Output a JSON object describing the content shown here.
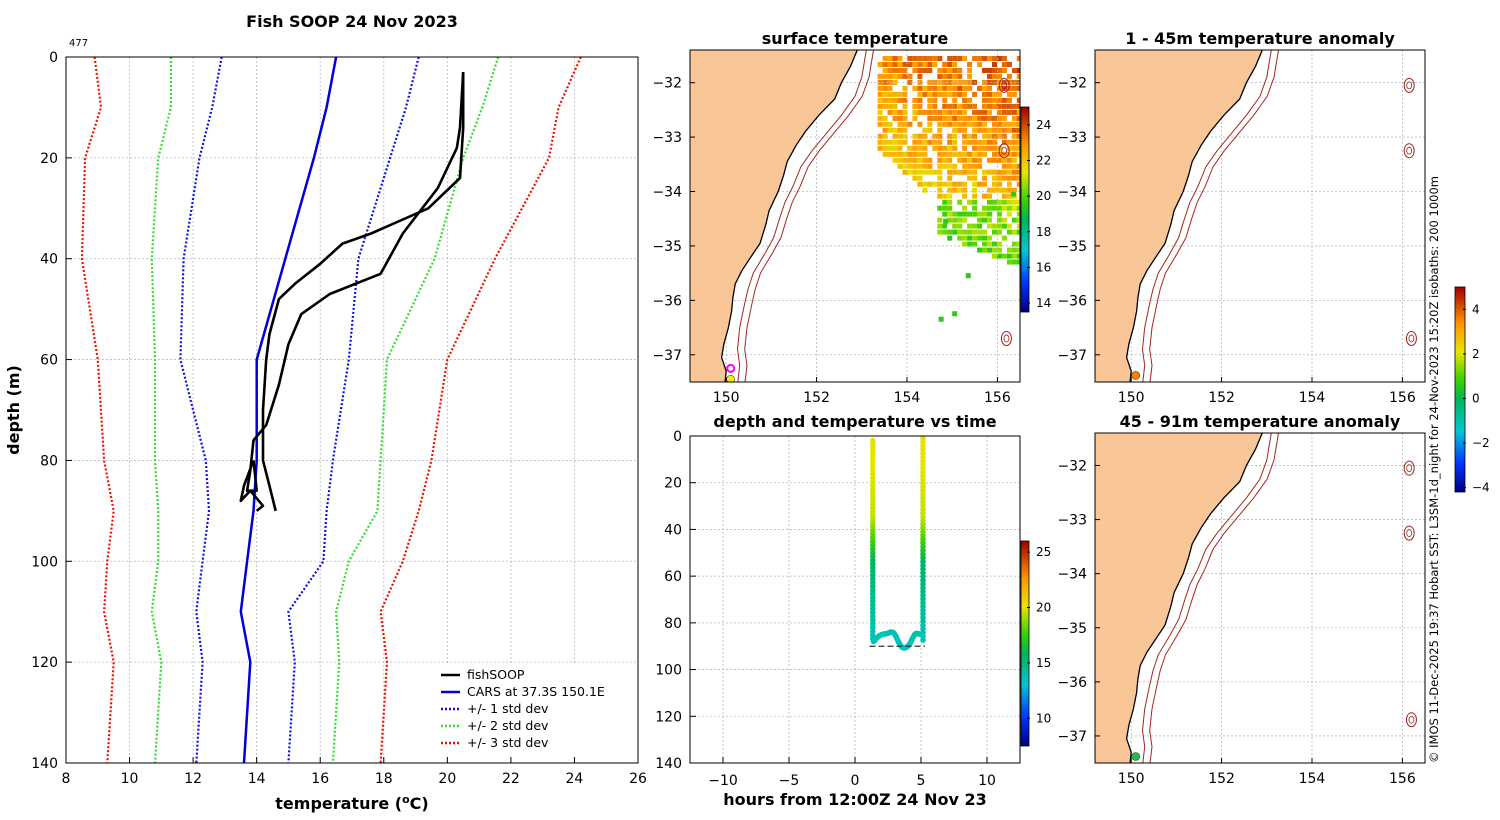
{
  "colors": {
    "land": "#f8c697",
    "coast": "#000000",
    "isobath": "#a0281e",
    "fish": "#000000",
    "cars": "#0000dd",
    "std1": "#1111dd",
    "std2": "#33dd33",
    "std3": "#ee1100"
  },
  "chart_data": [
    {
      "id": "profile",
      "type": "line",
      "title": "Fish SOOP 24 Nov 2023",
      "corner_label": "477",
      "xlabel": "temperature (",
      "xlabel_unit": "o",
      "xlabel_suffix": "C)",
      "ylabel": "depth (m)",
      "xlim": [
        8,
        26
      ],
      "ylim": [
        140,
        0
      ],
      "xticks": [
        8,
        10,
        12,
        14,
        16,
        18,
        20,
        22,
        24,
        26
      ],
      "yticks": [
        0,
        20,
        40,
        60,
        80,
        100,
        120,
        140
      ],
      "legend": [
        "fishSOOP",
        "CARS at 37.3S 150.1E",
        "+/- 1 std dev",
        "+/- 2 std dev",
        "+/- 3 std dev"
      ],
      "depths": [
        0,
        10,
        20,
        40,
        60,
        80,
        90,
        100,
        110,
        120,
        140
      ],
      "cars": [
        16.5,
        16.2,
        15.8,
        14.9,
        14.0,
        14.0,
        13.9,
        13.7,
        13.5,
        13.8,
        13.6
      ],
      "std_pairs": [
        {
          "name": "+/- 1 std dev",
          "lower": [
            12.9,
            12.6,
            12.2,
            11.7,
            11.6,
            12.4,
            12.5,
            12.3,
            12.1,
            12.3,
            12.1
          ],
          "upper": [
            19.1,
            18.7,
            18.2,
            17.2,
            16.9,
            16.4,
            16.2,
            16.1,
            15.0,
            15.2,
            15.0
          ]
        },
        {
          "name": "+/- 2 std dev",
          "lower": [
            11.3,
            11.3,
            10.9,
            10.7,
            10.8,
            10.8,
            10.9,
            10.9,
            10.7,
            11.0,
            10.8
          ],
          "upper": [
            21.6,
            21.1,
            20.5,
            19.6,
            18.1,
            17.9,
            17.8,
            16.9,
            16.5,
            16.6,
            16.4
          ]
        },
        {
          "name": "+/- 3 std dev",
          "lower": [
            8.9,
            9.1,
            8.6,
            8.5,
            9.0,
            9.2,
            9.5,
            9.3,
            9.2,
            9.5,
            9.3
          ],
          "upper": [
            24.2,
            23.5,
            23.2,
            21.5,
            20.0,
            19.5,
            19.1,
            18.6,
            17.9,
            18.1,
            17.9
          ]
        }
      ],
      "fish_descent": [
        [
          20.5,
          3
        ],
        [
          20.5,
          14
        ],
        [
          20.4,
          24
        ],
        [
          19.4,
          30
        ],
        [
          17.6,
          35
        ],
        [
          16.7,
          37
        ],
        [
          16.0,
          41
        ],
        [
          15.2,
          45
        ],
        [
          14.7,
          48
        ],
        [
          14.4,
          55
        ],
        [
          14.3,
          60
        ],
        [
          14.2,
          70
        ],
        [
          14.2,
          80
        ],
        [
          14.4,
          85
        ],
        [
          14.6,
          90
        ]
      ],
      "fish_ascent": [
        [
          13.9,
          80
        ],
        [
          14.0,
          86
        ],
        [
          13.7,
          86
        ],
        [
          13.8,
          82
        ],
        [
          13.9,
          76
        ],
        [
          14.3,
          73
        ],
        [
          14.7,
          65
        ],
        [
          15.0,
          57
        ],
        [
          15.4,
          51
        ],
        [
          16.3,
          47
        ],
        [
          17.9,
          43
        ],
        [
          18.6,
          35
        ],
        [
          19.7,
          26
        ],
        [
          20.3,
          18
        ],
        [
          20.4,
          14
        ],
        [
          20.5,
          3
        ]
      ],
      "fish_wiggle": [
        [
          13.9,
          80
        ],
        [
          13.6,
          85
        ],
        [
          13.5,
          88
        ],
        [
          13.8,
          86
        ],
        [
          14.2,
          89
        ],
        [
          14.0,
          90
        ]
      ]
    },
    {
      "id": "sst",
      "type": "heatmap",
      "title": "surface temperature",
      "xlim": [
        149.2,
        156.5
      ],
      "ylim": [
        -37.5,
        -31.4
      ],
      "xticks": [
        150,
        152,
        154,
        156
      ],
      "yticks": [
        -32,
        -33,
        -34,
        -35,
        -36,
        -37
      ],
      "colorbar": {
        "min": 13.5,
        "max": 25,
        "ticks": [
          14,
          16,
          18,
          20,
          22,
          24
        ]
      },
      "markers": [
        {
          "lon": 150.1,
          "lat": -37.25,
          "style": "ring",
          "color": "#ff00ff"
        },
        {
          "lon": 150.1,
          "lat": -37.45,
          "style": "dot",
          "color": "#ffee00"
        }
      ]
    },
    {
      "id": "anom1",
      "type": "map",
      "title": "1 - 45m temperature anomaly",
      "xlim": [
        149.2,
        156.5
      ],
      "ylim": [
        -37.5,
        -31.4
      ],
      "xticks": [
        150,
        152,
        154,
        156
      ],
      "yticks": [
        -32,
        -33,
        -34,
        -35,
        -36,
        -37
      ],
      "colorbar": {
        "min": -4.2,
        "max": 5,
        "ticks": [
          -4,
          -2,
          0,
          2,
          4
        ]
      },
      "markers": [
        {
          "lon": 150.1,
          "lat": -37.38,
          "style": "dot",
          "color": "#ff8000"
        }
      ]
    },
    {
      "id": "anom2",
      "type": "map",
      "title": "45 - 91m temperature anomaly",
      "xlim": [
        149.2,
        156.5
      ],
      "ylim": [
        -37.5,
        -31.4
      ],
      "xticks": [
        150,
        152,
        154,
        156
      ],
      "yticks": [
        -32,
        -33,
        -34,
        -35,
        -36,
        -37
      ],
      "markers": [
        {
          "lon": 150.1,
          "lat": -37.38,
          "style": "dot",
          "color": "#1fbf40"
        }
      ]
    },
    {
      "id": "timeseries",
      "type": "scatter",
      "title": "depth and temperature vs time",
      "xlabel": "hours from 12:00Z 24 Nov 23",
      "xlim": [
        -12.5,
        12.5
      ],
      "ylim": [
        140,
        0
      ],
      "xticks": [
        -10,
        -5,
        0,
        5,
        10
      ],
      "yticks": [
        0,
        20,
        40,
        60,
        80,
        100,
        120,
        140
      ],
      "colorbar": {
        "min": 7.5,
        "max": 26,
        "ticks": [
          10,
          15,
          20,
          25
        ]
      },
      "bottom_depth": 90
    }
  ],
  "side_note": "© IMOS 11-Dec-2025 19:37 Hobart SST: L3SM-1d_night for 24-Nov-2023 15:20Z isobaths: 200  1000m"
}
